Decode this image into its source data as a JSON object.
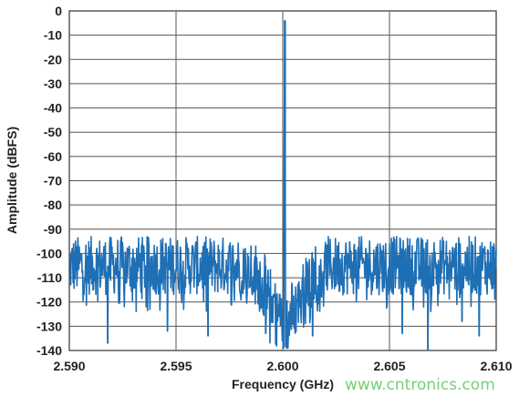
{
  "chart_data": {
    "type": "line",
    "title": "",
    "xlabel": "Frequency (GHz)",
    "ylabel": "Amplitude (dBFS)",
    "xlim": [
      2.59,
      2.61
    ],
    "ylim": [
      -140,
      0
    ],
    "x_ticks": [
      "2.590",
      "2.595",
      "2.600",
      "2.605",
      "2.610"
    ],
    "y_ticks": [
      "0",
      "-10",
      "-20",
      "-30",
      "-40",
      "-50",
      "-60",
      "-70",
      "-80",
      "-90",
      "-100",
      "-110",
      "-120",
      "-130",
      "-140"
    ],
    "grid": true,
    "legend": "none",
    "series": [
      {
        "color": "#1f6fb5",
        "peak": {
          "x": 2.6001,
          "y": -4
        },
        "noise_floor": {
          "mean": -105,
          "range": [
            -118,
            -95
          ]
        },
        "skirt": {
          "x_range": [
            2.598,
            2.602
          ],
          "top": -76
        },
        "spurs": [
          {
            "x": 2.5918,
            "y": -137
          },
          {
            "x": 2.5946,
            "y": -132
          },
          {
            "x": 2.5965,
            "y": -134
          },
          {
            "x": 2.5992,
            "y": -133
          },
          {
            "x": 2.6014,
            "y": -134
          },
          {
            "x": 2.6056,
            "y": -133
          },
          {
            "x": 2.6068,
            "y": -141
          },
          {
            "x": 2.6084,
            "y": -128
          },
          {
            "x": 2.6092,
            "y": -134
          }
        ]
      }
    ]
  },
  "watermark": "www.cntronics.com"
}
